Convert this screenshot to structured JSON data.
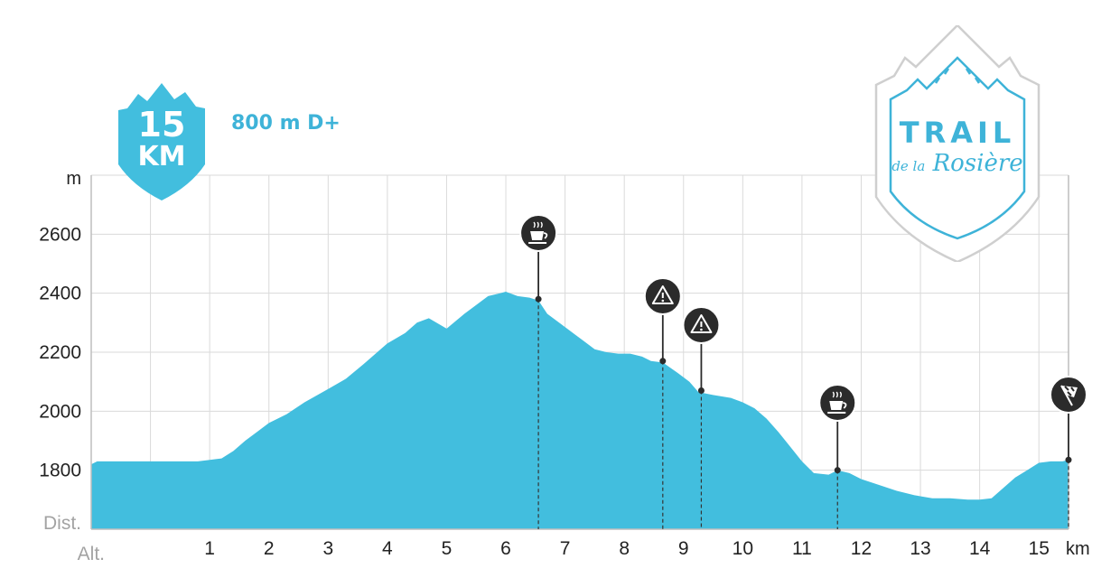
{
  "badge": {
    "distance": "15",
    "unit": "KM"
  },
  "elevation_gain": "800 m D+",
  "logo": {
    "title": "TRAIL",
    "subtitle_prefix": "de la",
    "subtitle": "Rosière"
  },
  "colors": {
    "profile": "#42bede",
    "accent": "#3eb3d8",
    "grid": "#dadada",
    "marker": "#2b2b2b"
  },
  "chart_data": {
    "type": "area",
    "y_unit_label": "m",
    "x_unit_label": "km",
    "dist_label": "Dist.",
    "alt_label": "Alt.",
    "xlim": [
      -1,
      15.5
    ],
    "ylim": [
      1600,
      2800
    ],
    "x_ticks": [
      1,
      2,
      3,
      4,
      5,
      6,
      7,
      8,
      9,
      10,
      11,
      12,
      13,
      14,
      15
    ],
    "y_ticks": [
      1800,
      2000,
      2200,
      2400,
      2600
    ],
    "grid": true,
    "series": [
      {
        "x": [
          -1,
          -0.9,
          -0.5,
          -0.2,
          0,
          0.2,
          0.4,
          0.6,
          0.8,
          1,
          1.2,
          1.4,
          1.6,
          1.8,
          2,
          2.3,
          2.6,
          3,
          3.3,
          3.6,
          4,
          4.3,
          4.5,
          4.7,
          5,
          5.3,
          5.5,
          5.7,
          5.9,
          6,
          6.2,
          6.4,
          6.55,
          6.7,
          6.9,
          7.1,
          7.3,
          7.5,
          7.7,
          7.9,
          8.1,
          8.3,
          8.45,
          8.65,
          8.9,
          9.1,
          9.25,
          9.5,
          9.8,
          10,
          10.2,
          10.4,
          10.6,
          10.8,
          11,
          11.2,
          11.45,
          11.6,
          11.8,
          12,
          12.3,
          12.6,
          12.9,
          13.2,
          13.5,
          13.8,
          14,
          14.2,
          14.4,
          14.6,
          14.8,
          15,
          15.2,
          15.4,
          15.5
        ],
        "y": [
          1820,
          1830,
          1830,
          1830,
          1830,
          1830,
          1830,
          1830,
          1830,
          1835,
          1840,
          1865,
          1900,
          1930,
          1960,
          1990,
          2030,
          2075,
          2110,
          2160,
          2230,
          2265,
          2300,
          2315,
          2280,
          2330,
          2360,
          2390,
          2400,
          2405,
          2390,
          2385,
          2375,
          2330,
          2300,
          2270,
          2240,
          2210,
          2200,
          2195,
          2195,
          2185,
          2170,
          2165,
          2130,
          2100,
          2065,
          2055,
          2045,
          2030,
          2010,
          1975,
          1930,
          1880,
          1830,
          1790,
          1785,
          1800,
          1790,
          1770,
          1750,
          1730,
          1715,
          1705,
          1705,
          1700,
          1700,
          1705,
          1740,
          1775,
          1800,
          1825,
          1830,
          1830,
          1835
        ]
      }
    ],
    "markers": [
      {
        "km": 6.55,
        "alt": 2380,
        "icon": "coffee-icon"
      },
      {
        "km": 8.65,
        "alt": 2170,
        "icon": "warning-icon"
      },
      {
        "km": 9.3,
        "alt": 2070,
        "icon": "warning-icon"
      },
      {
        "km": 11.6,
        "alt": 1800,
        "icon": "coffee-icon"
      },
      {
        "km": 15.5,
        "alt": 1835,
        "icon": "finish-flag-icon"
      }
    ]
  }
}
